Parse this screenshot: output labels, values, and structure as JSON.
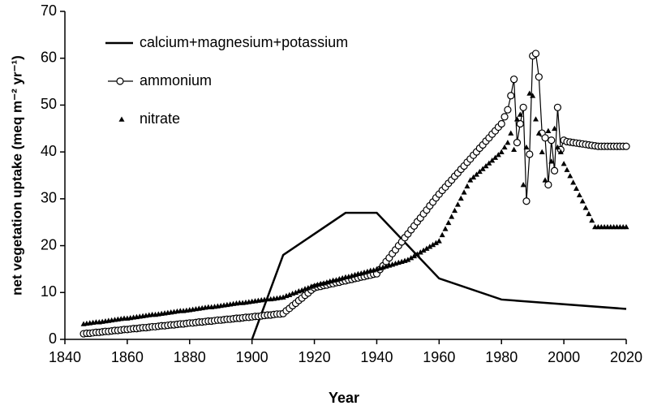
{
  "chart_data": {
    "type": "line",
    "xlabel": "Year",
    "ylabel": "net vegetation uptake (meq m⁻² yr⁻¹)",
    "xlim": [
      1840,
      2020
    ],
    "xticks": [
      1840,
      1860,
      1880,
      1900,
      1920,
      1940,
      1960,
      1980,
      2000,
      2020
    ],
    "ylim": [
      0,
      70
    ],
    "yticks": [
      0,
      10,
      20,
      30,
      40,
      50,
      60,
      70
    ],
    "legend": "upper left",
    "x": [
      1846,
      1847,
      1848,
      1849,
      1850,
      1851,
      1852,
      1853,
      1854,
      1855,
      1856,
      1857,
      1858,
      1859,
      1860,
      1861,
      1862,
      1863,
      1864,
      1865,
      1866,
      1867,
      1868,
      1869,
      1870,
      1871,
      1872,
      1873,
      1874,
      1875,
      1876,
      1877,
      1878,
      1879,
      1880,
      1881,
      1882,
      1883,
      1884,
      1885,
      1886,
      1887,
      1888,
      1889,
      1890,
      1891,
      1892,
      1893,
      1894,
      1895,
      1896,
      1897,
      1898,
      1899,
      1900,
      1901,
      1902,
      1903,
      1904,
      1905,
      1906,
      1907,
      1908,
      1909,
      1910,
      1911,
      1912,
      1913,
      1914,
      1915,
      1916,
      1917,
      1918,
      1919,
      1920,
      1921,
      1922,
      1923,
      1924,
      1925,
      1926,
      1927,
      1928,
      1929,
      1930,
      1931,
      1932,
      1933,
      1934,
      1935,
      1936,
      1937,
      1938,
      1939,
      1940,
      1941,
      1942,
      1943,
      1944,
      1945,
      1946,
      1947,
      1948,
      1949,
      1950,
      1951,
      1952,
      1953,
      1954,
      1955,
      1956,
      1957,
      1958,
      1959,
      1960,
      1961,
      1962,
      1963,
      1964,
      1965,
      1966,
      1967,
      1968,
      1969,
      1970,
      1971,
      1972,
      1973,
      1974,
      1975,
      1976,
      1977,
      1978,
      1979,
      1980,
      1981,
      1982,
      1983,
      1984,
      1985,
      1986,
      1987,
      1988,
      1989,
      1990,
      1991,
      1992,
      1993,
      1994,
      1995,
      1996,
      1997,
      1998,
      1999,
      2000,
      2001,
      2002,
      2003,
      2004,
      2005,
      2006,
      2007,
      2008,
      2009,
      2010,
      2011,
      2012,
      2013,
      2014,
      2015,
      2016,
      2017,
      2018,
      2019,
      2020
    ],
    "series": [
      {
        "name": "calcium+magnesium+potassium",
        "color": "#000000",
        "marker": "none",
        "x": [
          1900,
          1910,
          1930,
          1940,
          1960,
          1980,
          2020
        ],
        "values": [
          0,
          18,
          27,
          27,
          13,
          8.5,
          6.5
        ]
      },
      {
        "name": "ammonium",
        "color": "#000000",
        "marker": "circle",
        "values": [
          1.2,
          1.3,
          1.3,
          1.4,
          1.5,
          1.5,
          1.6,
          1.7,
          1.7,
          1.8,
          1.9,
          1.9,
          2.0,
          2.1,
          2.1,
          2.2,
          2.3,
          2.3,
          2.4,
          2.5,
          2.5,
          2.6,
          2.7,
          2.7,
          2.8,
          2.9,
          2.9,
          3.0,
          3.1,
          3.1,
          3.2,
          3.3,
          3.3,
          3.4,
          3.5,
          3.5,
          3.6,
          3.7,
          3.7,
          3.8,
          3.9,
          3.9,
          4.0,
          4.1,
          4.1,
          4.2,
          4.3,
          4.3,
          4.4,
          4.5,
          4.5,
          4.6,
          4.7,
          4.7,
          4.8,
          4.9,
          4.9,
          5.0,
          5.1,
          5.2,
          5.2,
          5.3,
          5.4,
          5.4,
          5.5,
          6.1,
          6.6,
          7.2,
          7.7,
          8.3,
          8.8,
          9.4,
          9.9,
          10.5,
          11.0,
          11.2,
          11.3,
          11.5,
          11.6,
          11.8,
          11.9,
          12.1,
          12.2,
          12.4,
          12.5,
          12.7,
          12.8,
          13.0,
          13.1,
          13.3,
          13.4,
          13.6,
          13.7,
          13.9,
          14.0,
          14.9,
          15.7,
          16.6,
          17.4,
          18.3,
          19.1,
          20.0,
          20.8,
          21.7,
          22.5,
          23.4,
          24.2,
          25.1,
          25.9,
          26.8,
          27.6,
          28.5,
          29.3,
          30.2,
          31.0,
          31.8,
          32.5,
          33.3,
          34.0,
          34.8,
          35.5,
          36.3,
          37.0,
          37.8,
          38.5,
          39.3,
          40.0,
          40.8,
          41.5,
          42.3,
          43.0,
          43.8,
          44.5,
          45.3,
          46.0,
          47.5,
          49,
          52,
          55.5,
          42,
          46,
          49.5,
          29.5,
          39.5,
          60.5,
          61,
          56,
          44,
          43,
          33,
          42.5,
          36,
          49.5,
          40.5,
          42.5,
          42.2,
          42.1,
          42.0,
          41.9,
          41.8,
          41.7,
          41.6,
          41.5,
          41.4,
          41.3,
          41.2,
          41.2,
          41.2,
          41.2,
          41.2,
          41.2,
          41.2,
          41.2,
          41.2,
          41.2
        ]
      },
      {
        "name": "nitrate",
        "color": "#000000",
        "marker": "triangle",
        "values": [
          3.3,
          3.4,
          3.5,
          3.6,
          3.7,
          3.7,
          3.8,
          3.9,
          4.0,
          4.1,
          4.2,
          4.3,
          4.4,
          4.5,
          4.5,
          4.6,
          4.7,
          4.8,
          4.9,
          5.0,
          5.1,
          5.2,
          5.3,
          5.3,
          5.4,
          5.5,
          5.6,
          5.7,
          5.8,
          5.9,
          6.0,
          6.1,
          6.1,
          6.2,
          6.3,
          6.4,
          6.5,
          6.6,
          6.7,
          6.8,
          6.9,
          6.9,
          7.0,
          7.1,
          7.2,
          7.3,
          7.4,
          7.5,
          7.6,
          7.7,
          7.8,
          7.8,
          7.9,
          8.0,
          8.1,
          8.2,
          8.3,
          8.4,
          8.5,
          8.6,
          8.6,
          8.7,
          8.8,
          8.9,
          9.0,
          9.3,
          9.5,
          9.8,
          10.0,
          10.3,
          10.5,
          10.8,
          11.0,
          11.3,
          11.5,
          11.7,
          11.9,
          12.0,
          12.2,
          12.4,
          12.6,
          12.7,
          12.9,
          13.1,
          13.3,
          13.4,
          13.6,
          13.8,
          14.0,
          14.1,
          14.3,
          14.5,
          14.7,
          14.8,
          15.0,
          15.2,
          15.4,
          15.6,
          15.8,
          16.0,
          16.2,
          16.4,
          16.6,
          16.8,
          17.0,
          17.4,
          17.8,
          18.2,
          18.6,
          19.0,
          19.4,
          19.8,
          20.2,
          20.6,
          21.0,
          22.3,
          23.6,
          24.9,
          26.2,
          27.5,
          28.8,
          30.1,
          31.4,
          32.7,
          34.0,
          34.6,
          35.2,
          35.8,
          36.4,
          37.0,
          37.6,
          38.2,
          38.8,
          39.4,
          40.0,
          41,
          42,
          44,
          40.5,
          47,
          48,
          33,
          41,
          52.5,
          52,
          47,
          44,
          40,
          34,
          44.5,
          38,
          45,
          41,
          40,
          37.5,
          36.2,
          34.9,
          33.5,
          32.2,
          30.8,
          29.5,
          28.1,
          26.8,
          25.4,
          24.0,
          24,
          24,
          24,
          24,
          24,
          24,
          24,
          24,
          24,
          24
        ]
      }
    ]
  }
}
